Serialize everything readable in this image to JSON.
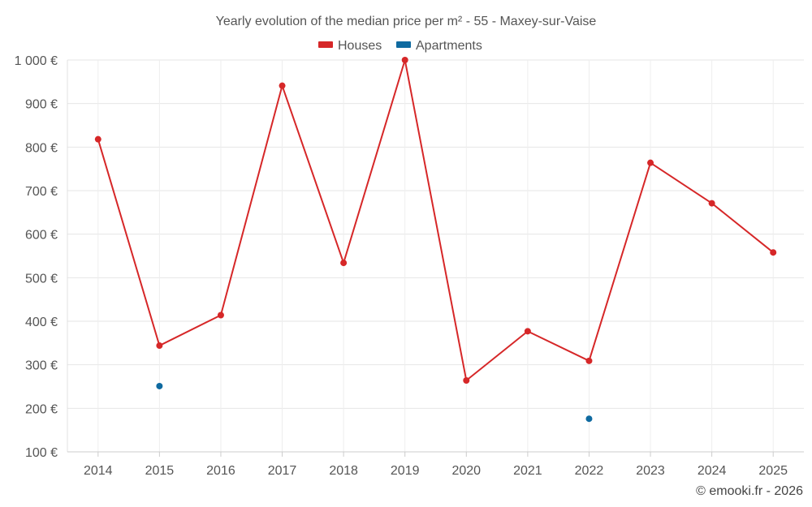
{
  "chart_data": {
    "type": "line",
    "title": "Yearly evolution of the median price per m² - 55 - Maxey-sur-Vaise",
    "categories": [
      "2014",
      "2015",
      "2016",
      "2017",
      "2018",
      "2019",
      "2020",
      "2021",
      "2022",
      "2023",
      "2024",
      "2025"
    ],
    "series": [
      {
        "name": "Houses",
        "color": "#d62728",
        "values": [
          818,
          344,
          414,
          941,
          534,
          1000,
          264,
          377,
          309,
          764,
          671,
          558
        ]
      },
      {
        "name": "Apartments",
        "color": "#0f6aa0",
        "values": [
          null,
          251,
          null,
          null,
          null,
          null,
          null,
          null,
          176,
          null,
          null,
          null
        ]
      }
    ],
    "yticks": [
      "100 €",
      "200 €",
      "300 €",
      "400 €",
      "500 €",
      "600 €",
      "700 €",
      "800 €",
      "900 €",
      "1 000 €"
    ],
    "ytick_values": [
      100,
      200,
      300,
      400,
      500,
      600,
      700,
      800,
      900,
      1000
    ],
    "ylim": [
      100,
      1000
    ],
    "xlabel": "",
    "ylabel": "",
    "grid": true,
    "legend_position": "top-center"
  },
  "credit": "© emooki.fr - 2026"
}
